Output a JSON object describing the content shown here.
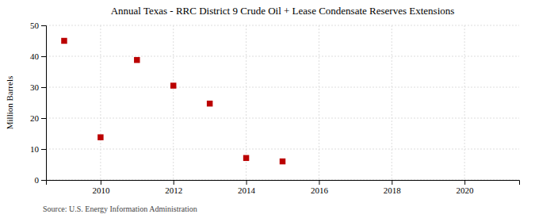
{
  "chart_data": {
    "type": "scatter",
    "title": "Annual Texas - RRC District 9 Crude Oil + Lease Condensate Reserves Extensions",
    "ylabel": "Million Barrels",
    "annotation": "Source: U.S. Energy Information Administration",
    "x": [
      2009,
      2010,
      2011,
      2012,
      2013,
      2014,
      2015
    ],
    "values": [
      45.0,
      13.8,
      38.8,
      30.5,
      24.7,
      7.1,
      6.0
    ],
    "color": "#bb0000",
    "marker": "square",
    "xlim": [
      2008.5,
      2021.5
    ],
    "ylim": [
      0,
      50
    ],
    "xticks": [
      2010,
      2012,
      2014,
      2016,
      2018,
      2020
    ],
    "yticks": [
      0,
      10,
      20,
      30,
      40,
      50
    ],
    "grid": true
  }
}
